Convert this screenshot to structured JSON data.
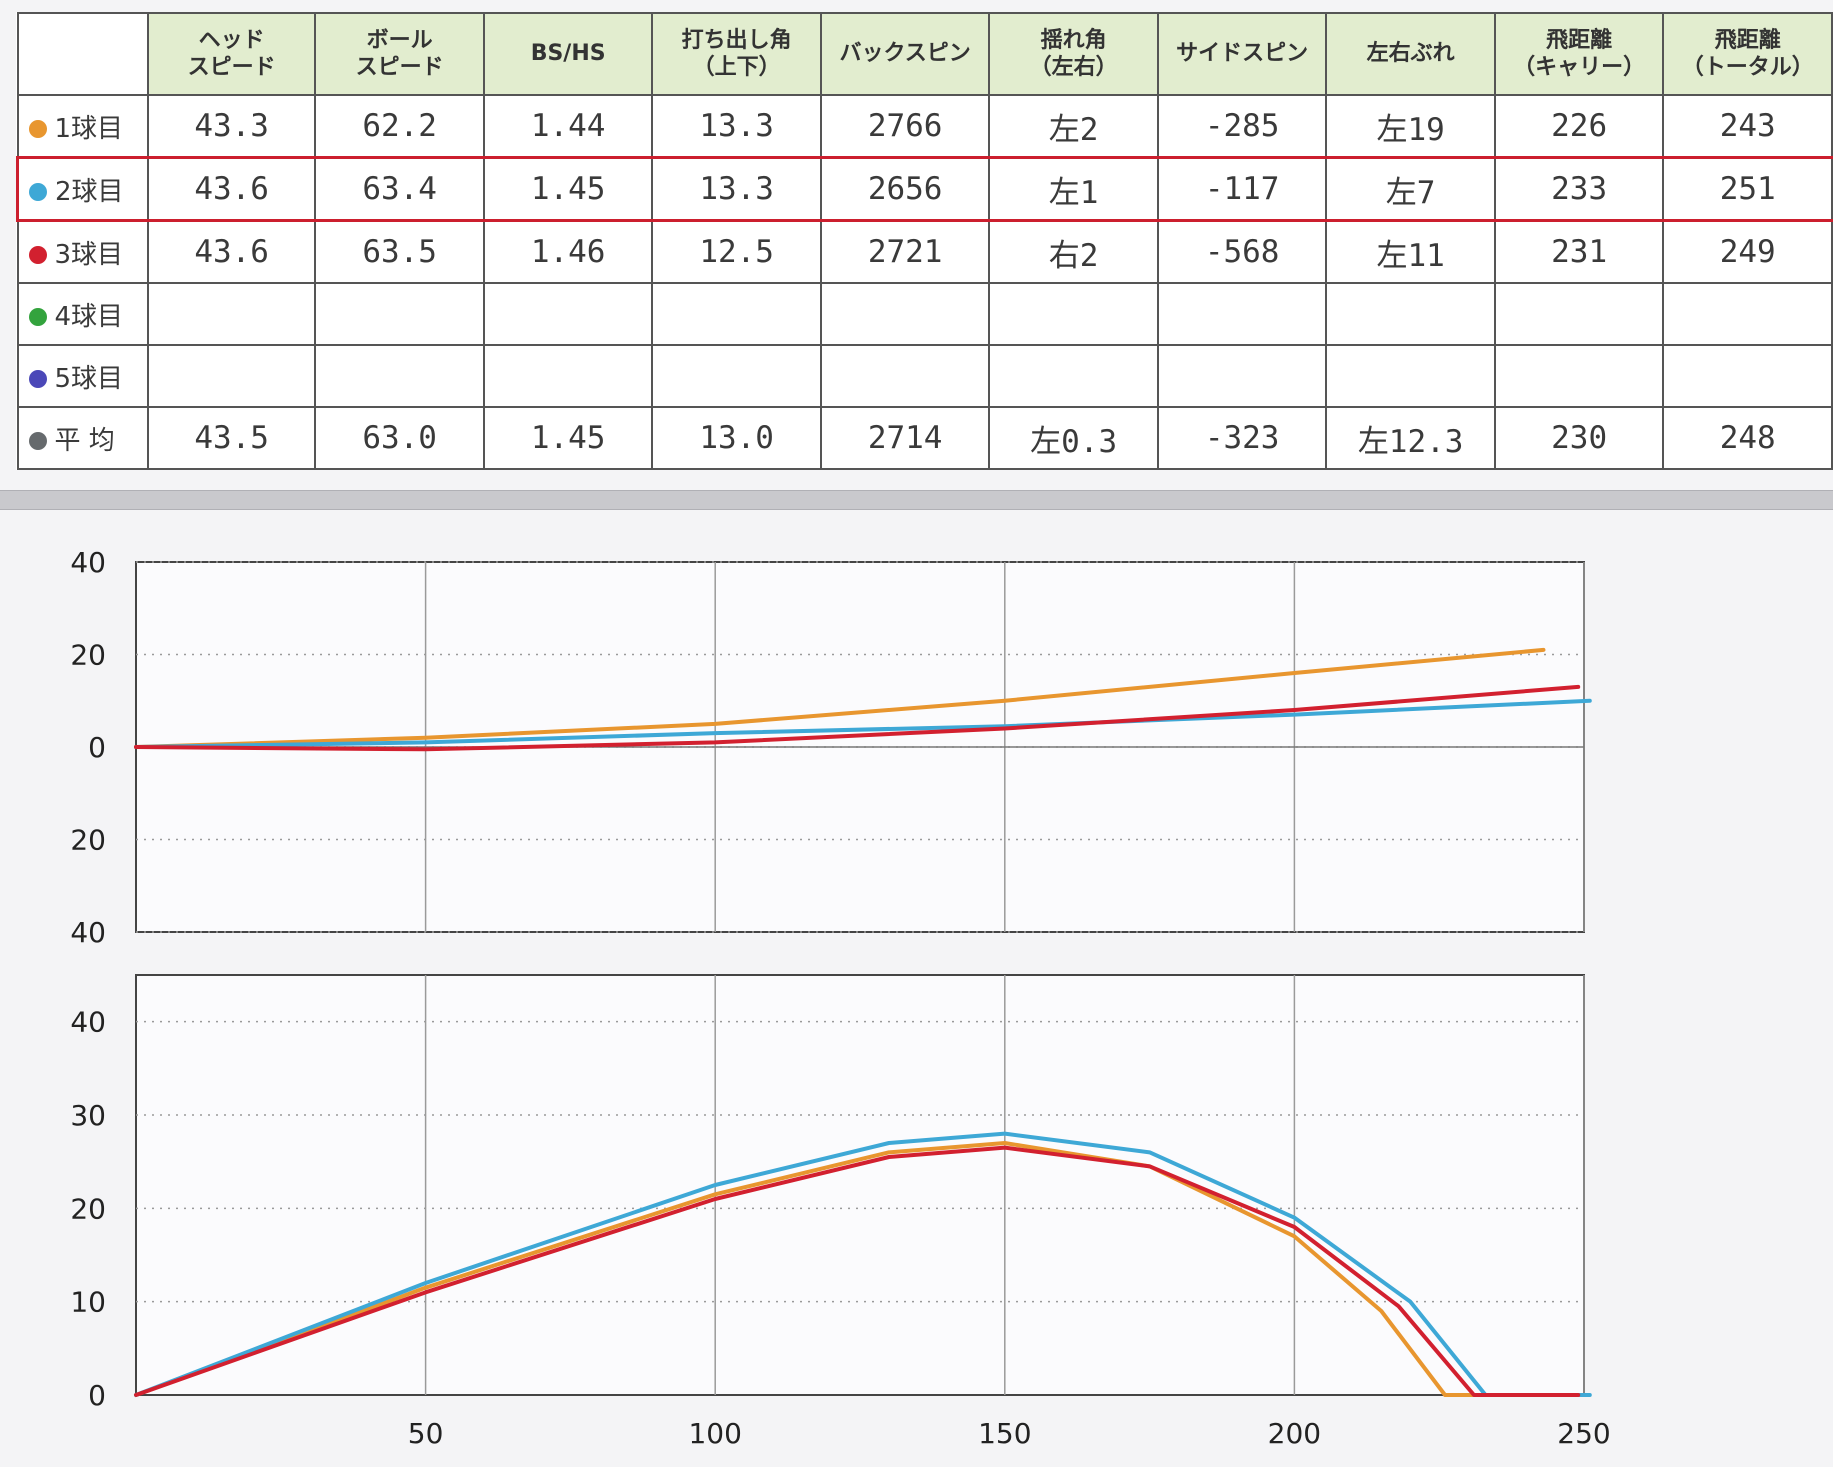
{
  "table": {
    "headers": [
      "",
      "ヘッド\nスピード",
      "ボール\nスピード",
      "BS/HS",
      "打ち出し角\n（上下）",
      "バックスピン",
      "揺れ角\n（左右）",
      "サイドスピン",
      "左右ぶれ",
      "飛距離\n（キャリー）",
      "飛距離\n（トータル）"
    ],
    "rows": [
      {
        "label": "1球目",
        "color": "#e8962f",
        "cells": [
          "43.3",
          "62.2",
          "1.44",
          "13.3",
          "2766",
          "左2",
          "-285",
          "左19",
          "226",
          "243"
        ]
      },
      {
        "label": "2球目",
        "color": "#3ea8d6",
        "cells": [
          "43.6",
          "63.4",
          "1.45",
          "13.3",
          "2656",
          "左1",
          "-117",
          "左7",
          "233",
          "251"
        ]
      },
      {
        "label": "3球目",
        "color": "#d2202f",
        "cells": [
          "43.6",
          "63.5",
          "1.46",
          "12.5",
          "2721",
          "右2",
          "-568",
          "左11",
          "231",
          "249"
        ]
      },
      {
        "label": "4球目",
        "color": "#33a33d",
        "cells": [
          "",
          "",
          "",
          "",
          "",
          "",
          "",
          "",
          "",
          ""
        ]
      },
      {
        "label": "5球目",
        "color": "#4b48b8",
        "cells": [
          "",
          "",
          "",
          "",
          "",
          "",
          "",
          "",
          "",
          ""
        ]
      },
      {
        "label": "平 均",
        "color": "#666a6d",
        "cells": [
          "43.5",
          "63.0",
          "1.45",
          "13.0",
          "2714",
          "左0.3",
          "-323",
          "左12.3",
          "230",
          "248"
        ]
      }
    ]
  },
  "chart_data": [
    {
      "type": "line",
      "xlim": [
        0,
        250
      ],
      "ylim": [
        -40,
        40
      ],
      "ytick_labels": [
        "40",
        "20",
        "0",
        "20",
        "40"
      ],
      "xtick_labels": [
        "50",
        "100",
        "150",
        "200",
        "250"
      ],
      "grid": true,
      "series": [
        {
          "color": "#e8962f",
          "x": [
            0,
            50,
            100,
            150,
            200,
            243
          ],
          "y": [
            0,
            2,
            5,
            10,
            16,
            21
          ]
        },
        {
          "color": "#3ea8d6",
          "x": [
            0,
            50,
            100,
            150,
            200,
            251
          ],
          "y": [
            0,
            1,
            3,
            4.5,
            7,
            10
          ]
        },
        {
          "color": "#d2202f",
          "x": [
            0,
            50,
            100,
            150,
            200,
            249
          ],
          "y": [
            0,
            -0.5,
            1,
            4,
            8,
            13
          ]
        }
      ]
    },
    {
      "type": "line",
      "xlim": [
        0,
        250
      ],
      "ylim": [
        0,
        45
      ],
      "ytick_labels": [
        "40",
        "30",
        "20",
        "10",
        "0"
      ],
      "xtick_labels": [
        "50",
        "100",
        "150",
        "200",
        "250"
      ],
      "grid": true,
      "series": [
        {
          "color": "#e8962f",
          "x": [
            0,
            50,
            100,
            130,
            150,
            175,
            200,
            215,
            226,
            243
          ],
          "y": [
            0,
            11.5,
            21.5,
            26,
            27,
            24.5,
            17,
            9,
            0,
            0
          ]
        },
        {
          "color": "#3ea8d6",
          "x": [
            0,
            50,
            100,
            130,
            150,
            175,
            200,
            220,
            233,
            251
          ],
          "y": [
            0,
            12,
            22.5,
            27,
            28,
            26,
            19,
            10,
            0,
            0
          ]
        },
        {
          "color": "#d2202f",
          "x": [
            0,
            50,
            100,
            130,
            150,
            175,
            200,
            218,
            231,
            249
          ],
          "y": [
            0,
            11,
            21,
            25.5,
            26.5,
            24.5,
            18,
            9.5,
            0,
            0
          ]
        }
      ]
    }
  ]
}
